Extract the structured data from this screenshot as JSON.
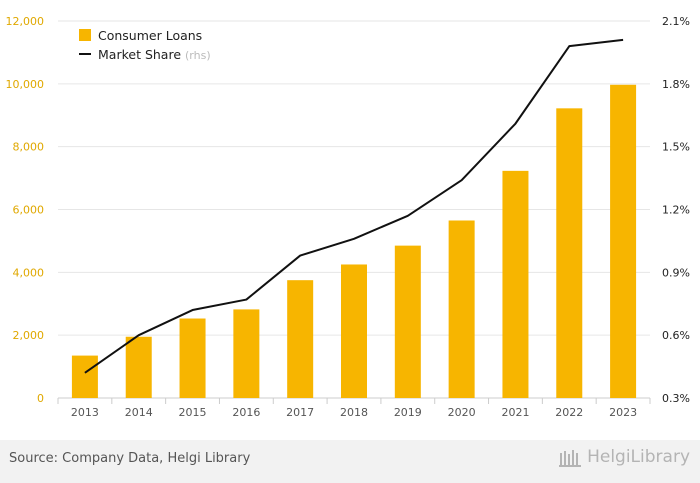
{
  "chart_data": {
    "type": "bar",
    "categories": [
      "2013",
      "2014",
      "2015",
      "2016",
      "2017",
      "2018",
      "2019",
      "2020",
      "2021",
      "2022",
      "2023"
    ],
    "series": [
      {
        "name": "Consumer Loans",
        "chart": "bar",
        "axis": "left",
        "color": "#f7b500",
        "values": [
          1350,
          1950,
          2530,
          2820,
          3750,
          4250,
          4850,
          5650,
          7230,
          9220,
          9970
        ]
      },
      {
        "name": "Market Share",
        "chart": "line",
        "axis": "right",
        "color": "#111111",
        "values": [
          0.42,
          0.6,
          0.72,
          0.77,
          0.98,
          1.06,
          1.17,
          1.34,
          1.61,
          1.98,
          2.01
        ]
      }
    ],
    "y_left": {
      "lim": [
        0,
        12000
      ],
      "ticks": [
        0,
        2000,
        4000,
        6000,
        8000,
        10000,
        12000
      ],
      "tick_labels": [
        "0",
        "2,000",
        "4,000",
        "6,000",
        "8,000",
        "10,000",
        "12,000"
      ]
    },
    "y_right": {
      "lim": [
        0.3,
        2.1
      ],
      "ticks": [
        0.3,
        0.6,
        0.9,
        1.2,
        1.5,
        1.8,
        2.1
      ],
      "tick_labels": [
        "0.3%",
        "0.6%",
        "0.9%",
        "1.2%",
        "1.5%",
        "1.8%",
        "2.1%"
      ]
    },
    "legend": {
      "items": [
        {
          "label": "Consumer Loans",
          "suffix": ""
        },
        {
          "label": "Market Share",
          "suffix": "(rhs)"
        }
      ]
    },
    "grid": true
  },
  "footer": {
    "source": "Source: Company Data, Helgi Library",
    "brand": "HelgiLibrary"
  },
  "colors": {
    "bar": "#f7b500",
    "line": "#111111",
    "left_axis_text": "#e0a800",
    "grid": "#e6e6e6"
  }
}
